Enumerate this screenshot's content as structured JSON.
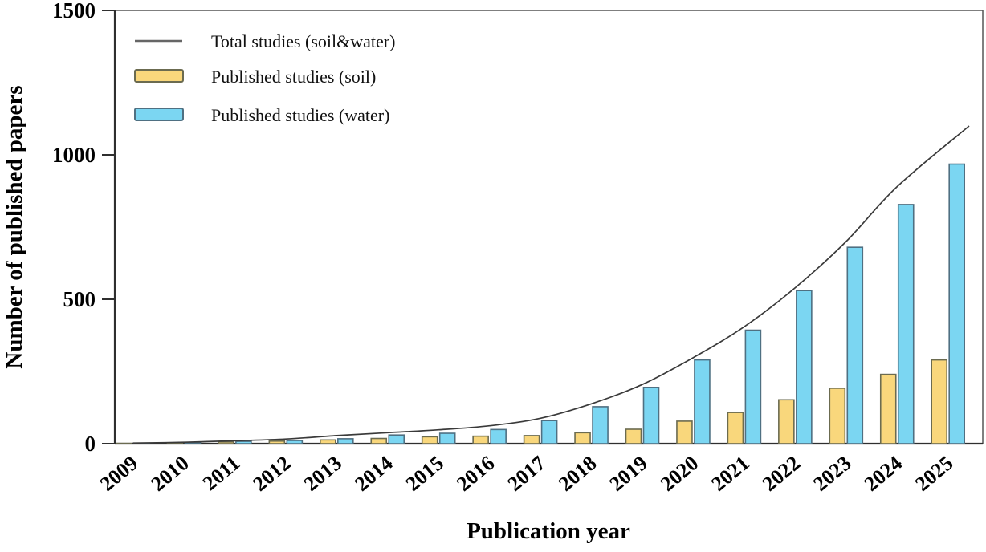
{
  "figure": {
    "background": "#ffffff",
    "axis_color": "#2f2f2f"
  },
  "chart_data": {
    "type": "bar",
    "title": "",
    "xlabel": "Publication year",
    "ylabel": "Number of published papers",
    "categories": [
      "2009",
      "2010",
      "2011",
      "2012",
      "2013",
      "2014",
      "2015",
      "2016",
      "2017",
      "2018",
      "2019",
      "2020",
      "2021",
      "2022",
      "2023",
      "2024",
      "2025"
    ],
    "series": [
      {
        "name": "Published studies (soil)",
        "type": "bar",
        "color": "#F9D77C",
        "stroke": "#6b6b50",
        "values": [
          1,
          3,
          6,
          9,
          13,
          18,
          24,
          26,
          28,
          38,
          50,
          78,
          108,
          152,
          192,
          240,
          290
        ]
      },
      {
        "name": "Published studies (water)",
        "type": "bar",
        "color": "#7BD6F2",
        "stroke": "#4f7082",
        "values": [
          1,
          4,
          8,
          11,
          17,
          30,
          36,
          49,
          80,
          128,
          195,
          290,
          393,
          530,
          680,
          828,
          968
        ]
      },
      {
        "name": "Total studies (soil&water)",
        "type": "line",
        "color": "#3a3a3a",
        "values": [
          2,
          5,
          10,
          16,
          28,
          38,
          48,
          62,
          88,
          138,
          205,
          298,
          405,
          540,
          700,
          890,
          1100
        ]
      }
    ],
    "ylim": [
      0,
      1500
    ],
    "yticks": [
      0,
      500,
      1000,
      1500
    ],
    "grid": false,
    "legend_position": "top-left"
  }
}
